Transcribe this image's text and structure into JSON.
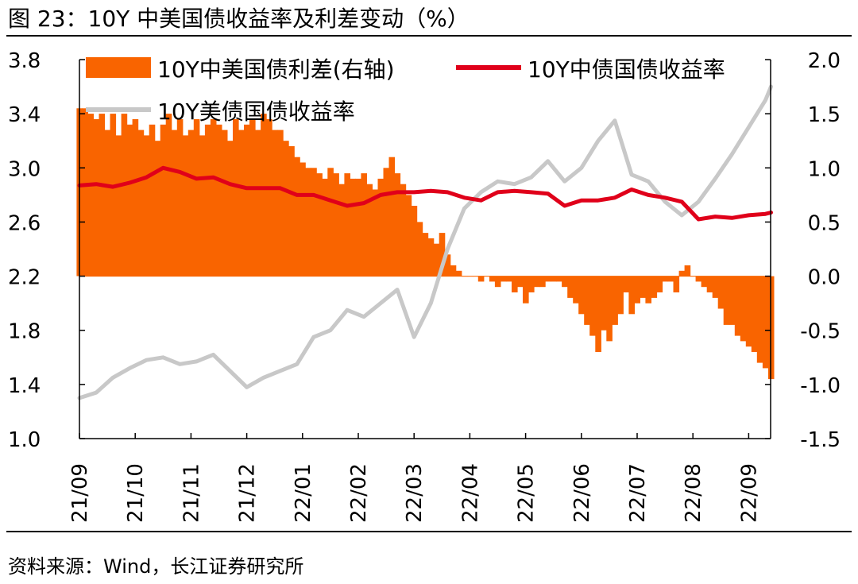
{
  "figure": {
    "title": "图 23：10Y 中美国债收益率及利差变动（%）",
    "source": "资料来源：Wind，长江证券研究所"
  },
  "colors": {
    "spread": "#F96400",
    "cn_yield": "#E0001A",
    "us_yield": "#C8C8C8",
    "axis": "#000000"
  },
  "chart_data": {
    "type": "line",
    "x_labels": [
      "21/09",
      "21/10",
      "21/11",
      "21/12",
      "22/01",
      "22/02",
      "22/03",
      "22/04",
      "22/05",
      "22/06",
      "22/07",
      "22/08",
      "22/09"
    ],
    "x_label_rotation": "vertical",
    "left_axis": {
      "ylim": [
        1.0,
        3.8
      ],
      "ticks": [
        "3.8",
        "3.4",
        "3.0",
        "2.6",
        "2.2",
        "1.8",
        "1.4",
        "1.0"
      ],
      "tick_values": [
        3.8,
        3.4,
        3.0,
        2.6,
        2.2,
        1.8,
        1.4,
        1.0
      ]
    },
    "right_axis": {
      "ylim": [
        -1.5,
        2.0
      ],
      "ticks": [
        "2.0",
        "1.5",
        "1.0",
        "0.5",
        "0.0",
        "-0.5",
        "-1.0",
        "-1.5"
      ],
      "tick_values": [
        2.0,
        1.5,
        1.0,
        0.5,
        0.0,
        -0.5,
        -1.0,
        -1.5
      ]
    },
    "legend": {
      "spread": "10Y中美国债利差(右轴)",
      "cn": "10Y中债国债收益率",
      "us": "10Y美债国债收益率",
      "placement": "top"
    },
    "series": [
      {
        "name": "10Y中美国债利差(右轴)",
        "key": "spread",
        "axis": "right",
        "style": "area",
        "x": [
          0,
          0.1,
          0.2,
          0.3,
          0.4,
          0.5,
          0.6,
          0.7,
          0.8,
          0.9,
          1.0,
          1.1,
          1.2,
          1.3,
          1.4,
          1.5,
          1.6,
          1.7,
          1.8,
          1.9,
          2.0,
          2.1,
          2.2,
          2.3,
          2.4,
          2.5,
          2.6,
          2.7,
          2.8,
          2.9,
          3.0,
          3.1,
          3.2,
          3.3,
          3.4,
          3.5,
          3.6,
          3.7,
          3.8,
          3.9,
          4.0,
          4.1,
          4.2,
          4.3,
          4.4,
          4.5,
          4.6,
          4.7,
          4.8,
          4.9,
          5.0,
          5.1,
          5.2,
          5.3,
          5.4,
          5.5,
          5.6,
          5.7,
          5.8,
          5.9,
          6.0,
          6.1,
          6.2,
          6.3,
          6.4,
          6.5,
          6.6,
          6.7,
          6.8,
          6.9,
          7.0,
          7.1,
          7.2,
          7.3,
          7.4,
          7.5,
          7.6,
          7.7,
          7.8,
          7.9,
          8.0,
          8.1,
          8.2,
          8.3,
          8.4,
          8.5,
          8.6,
          8.7,
          8.8,
          8.9,
          9.0,
          9.1,
          9.2,
          9.3,
          9.4,
          9.5,
          9.6,
          9.7,
          9.8,
          9.9,
          10.0,
          10.1,
          10.2,
          10.3,
          10.4,
          10.5,
          10.6,
          10.7,
          10.8,
          10.9,
          11.0,
          11.1,
          11.2,
          11.3,
          11.4,
          11.5,
          11.6,
          11.7,
          11.8,
          11.9,
          12.0,
          12.1,
          12.2,
          12.3,
          12.4
        ],
        "values": [
          1.55,
          1.55,
          1.5,
          1.45,
          1.5,
          1.35,
          1.5,
          1.3,
          1.5,
          1.4,
          1.45,
          1.35,
          1.3,
          1.4,
          1.25,
          1.4,
          1.5,
          1.35,
          1.45,
          1.3,
          1.35,
          1.45,
          1.3,
          1.4,
          1.45,
          1.4,
          1.35,
          1.25,
          1.45,
          1.35,
          1.4,
          1.45,
          1.35,
          1.5,
          1.45,
          1.35,
          1.35,
          1.25,
          1.2,
          1.1,
          1.05,
          1.0,
          1.0,
          0.95,
          0.9,
          1.0,
          0.95,
          0.85,
          0.95,
          0.9,
          0.9,
          0.95,
          0.85,
          0.8,
          0.9,
          1.0,
          1.1,
          0.95,
          0.85,
          0.75,
          0.65,
          0.5,
          0.4,
          0.35,
          0.3,
          0.4,
          0.2,
          0.1,
          0.05,
          0.0,
          0.0,
          0.0,
          -0.05,
          0.0,
          -0.05,
          -0.1,
          -0.05,
          -0.05,
          -0.15,
          -0.1,
          -0.25,
          -0.15,
          -0.1,
          -0.1,
          -0.05,
          -0.05,
          -0.05,
          -0.1,
          -0.2,
          -0.25,
          -0.35,
          -0.45,
          -0.55,
          -0.7,
          -0.5,
          -0.6,
          -0.45,
          -0.35,
          -0.15,
          -0.35,
          -0.25,
          -0.2,
          -0.25,
          -0.2,
          -0.15,
          -0.05,
          -0.05,
          -0.15,
          0.05,
          0.1,
          0.0,
          -0.05,
          -0.1,
          -0.15,
          -0.2,
          -0.3,
          -0.45,
          -0.45,
          -0.55,
          -0.6,
          -0.65,
          -0.7,
          -0.8,
          -0.85,
          -0.95
        ]
      },
      {
        "name": "10Y中债国债收益率",
        "key": "cn",
        "axis": "left",
        "style": "line",
        "x": [
          0,
          0.3,
          0.6,
          0.9,
          1.2,
          1.5,
          1.8,
          2.1,
          2.4,
          2.7,
          3.0,
          3.3,
          3.6,
          3.9,
          4.2,
          4.5,
          4.8,
          5.1,
          5.4,
          5.7,
          6.0,
          6.3,
          6.6,
          6.9,
          7.2,
          7.5,
          7.8,
          8.1,
          8.4,
          8.7,
          9.0,
          9.3,
          9.6,
          9.9,
          10.2,
          10.5,
          10.8,
          11.1,
          11.4,
          11.7,
          12.0,
          12.3,
          12.4
        ],
        "values": [
          2.87,
          2.88,
          2.86,
          2.89,
          2.93,
          3.0,
          2.97,
          2.92,
          2.93,
          2.88,
          2.85,
          2.85,
          2.85,
          2.8,
          2.8,
          2.76,
          2.72,
          2.74,
          2.8,
          2.82,
          2.82,
          2.83,
          2.82,
          2.78,
          2.76,
          2.82,
          2.83,
          2.82,
          2.81,
          2.72,
          2.76,
          2.76,
          2.78,
          2.84,
          2.8,
          2.78,
          2.75,
          2.62,
          2.64,
          2.63,
          2.65,
          2.66,
          2.67
        ]
      },
      {
        "name": "10Y美债国债收益率",
        "key": "us",
        "axis": "left",
        "style": "line",
        "x": [
          0,
          0.3,
          0.6,
          0.9,
          1.2,
          1.5,
          1.8,
          2.1,
          2.4,
          2.7,
          3.0,
          3.3,
          3.6,
          3.9,
          4.2,
          4.5,
          4.8,
          5.1,
          5.4,
          5.7,
          6.0,
          6.3,
          6.6,
          6.9,
          7.2,
          7.5,
          7.8,
          8.1,
          8.4,
          8.7,
          9.0,
          9.3,
          9.6,
          9.9,
          10.2,
          10.5,
          10.8,
          11.1,
          11.4,
          11.7,
          12.0,
          12.3,
          12.4
        ],
        "values": [
          1.3,
          1.34,
          1.45,
          1.52,
          1.58,
          1.6,
          1.55,
          1.57,
          1.62,
          1.5,
          1.38,
          1.45,
          1.5,
          1.55,
          1.75,
          1.8,
          1.95,
          1.9,
          2.0,
          2.1,
          1.75,
          2.0,
          2.4,
          2.7,
          2.82,
          2.9,
          2.88,
          2.93,
          3.05,
          2.9,
          3.0,
          3.2,
          3.35,
          2.95,
          2.9,
          2.75,
          2.65,
          2.75,
          2.92,
          3.1,
          3.3,
          3.5,
          3.6
        ]
      }
    ]
  }
}
